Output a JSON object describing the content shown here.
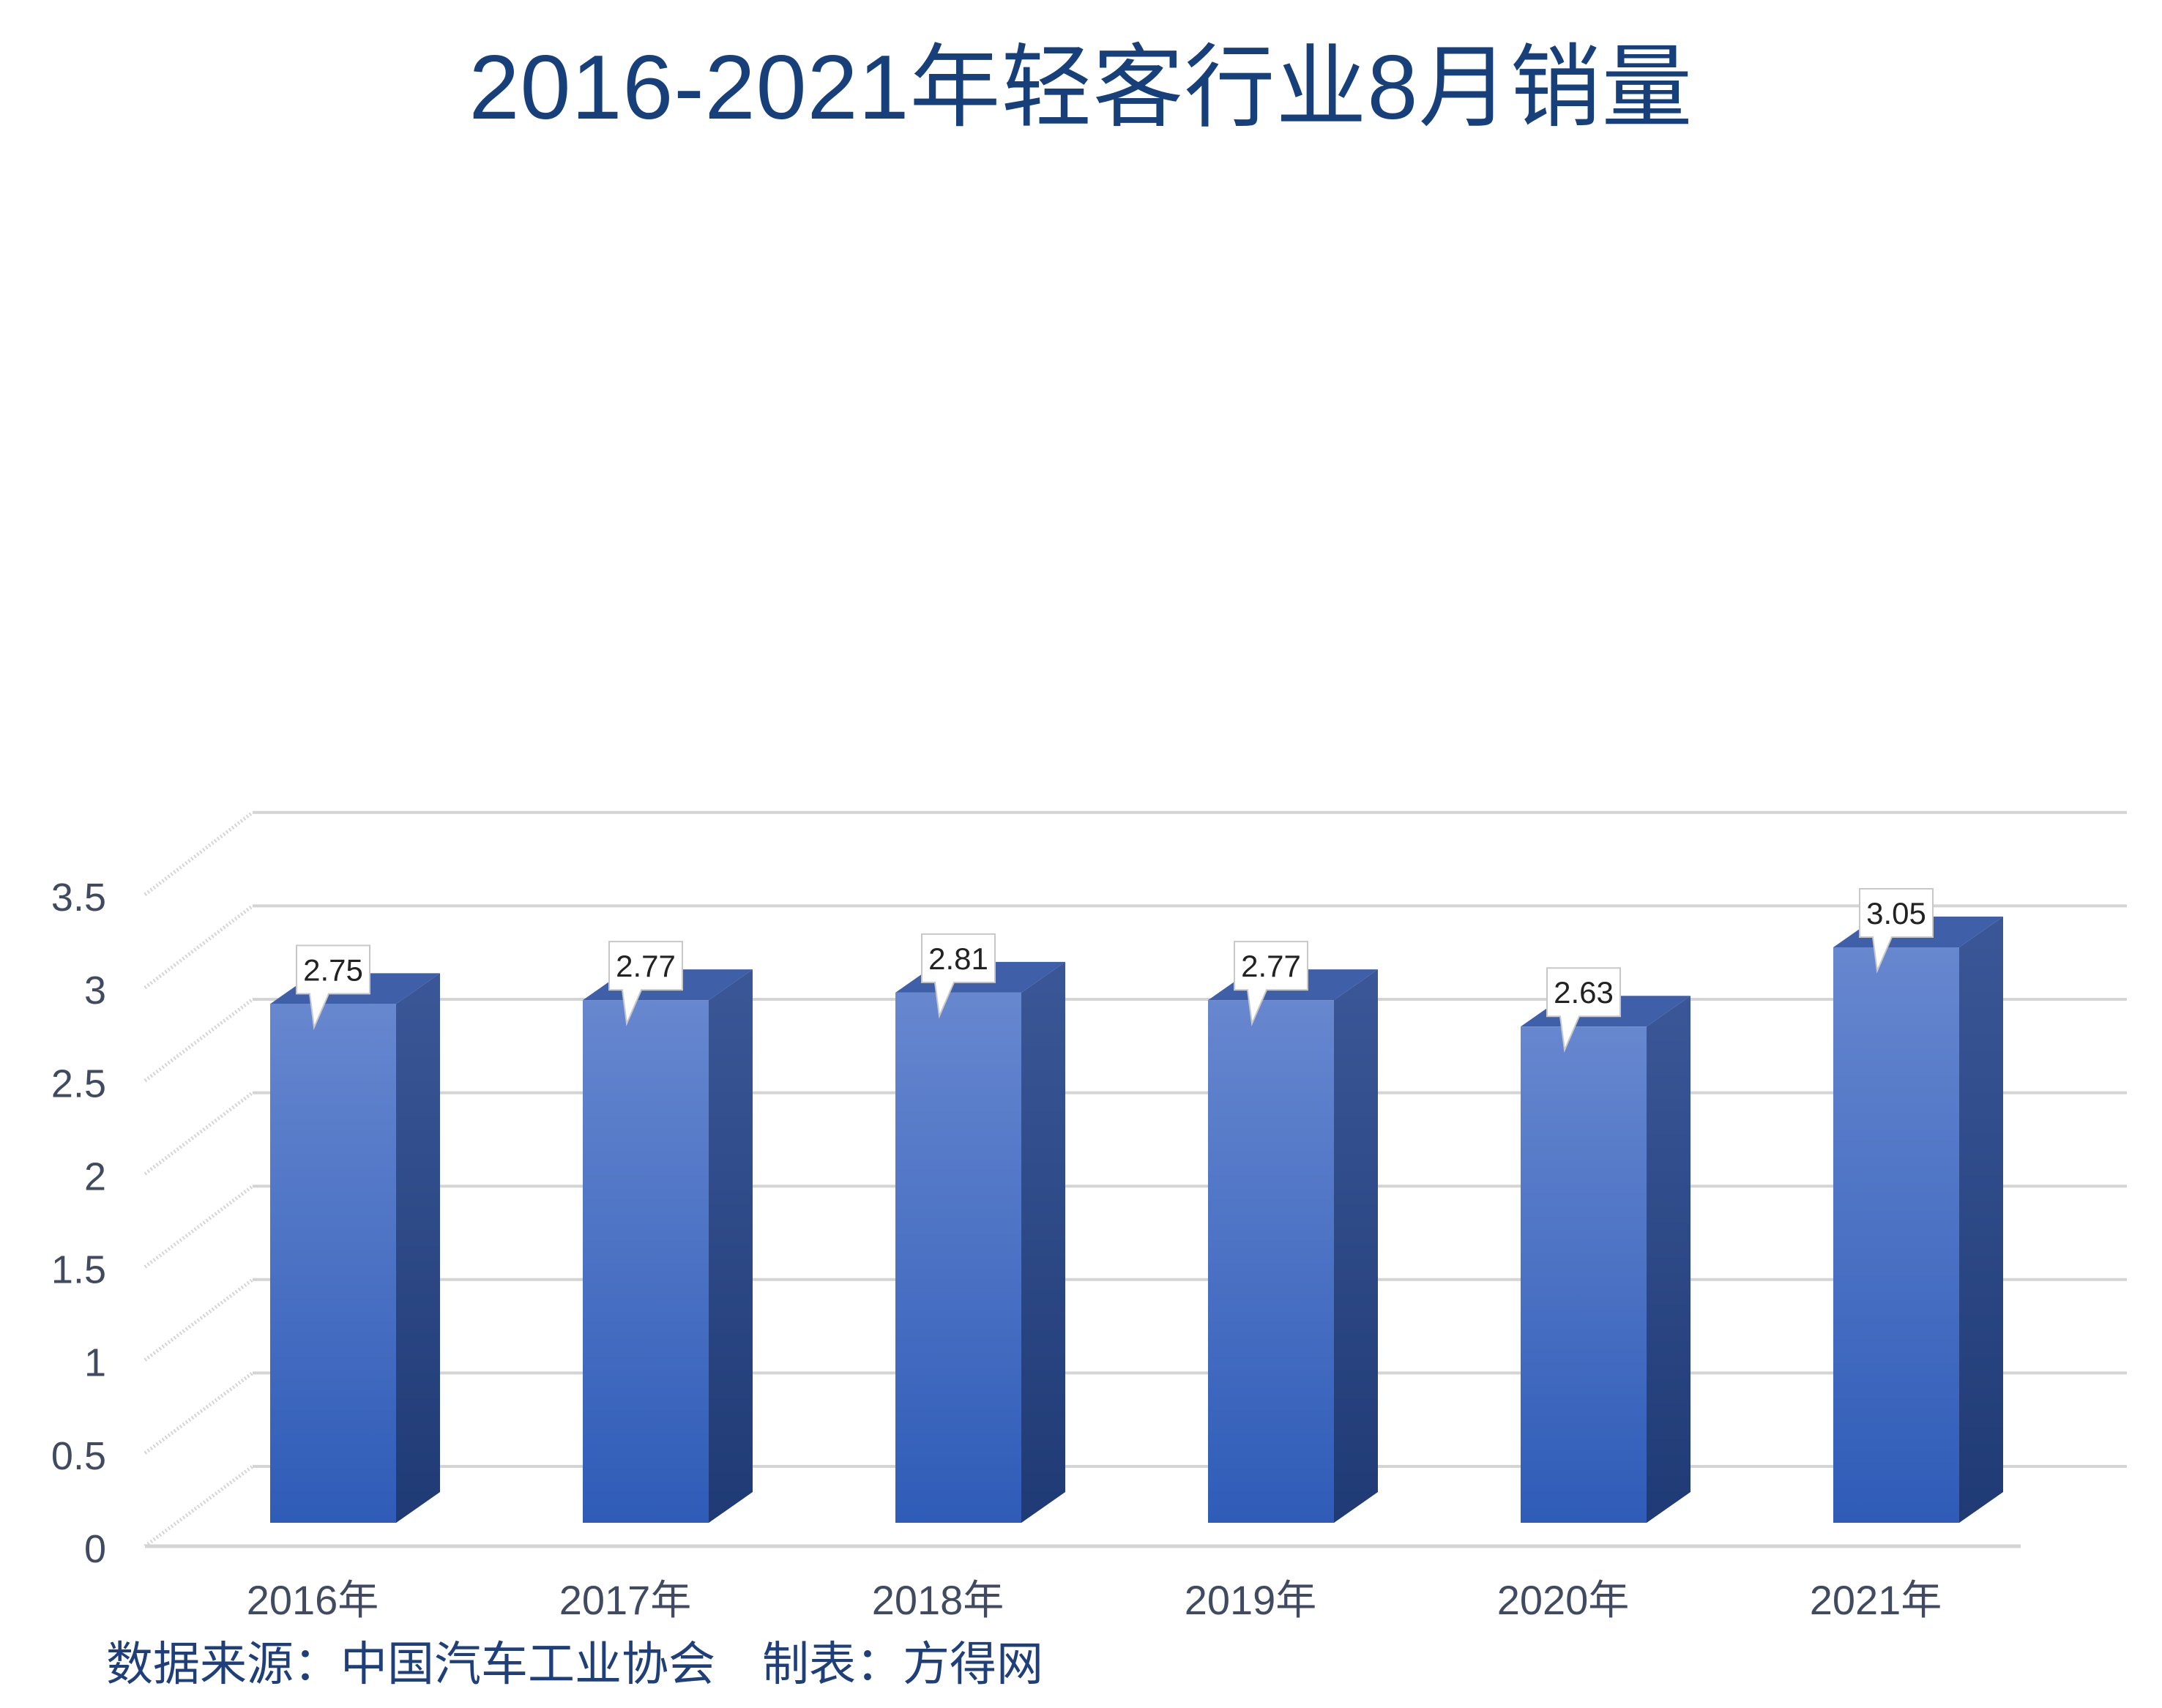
{
  "title": "2016-2021年轻客行业8月销量",
  "source_note": "数据来源：中国汽车工业协会　制表：方得网",
  "colors": {
    "title": "#17407a",
    "bar_front_top": "#6787cf",
    "bar_front_bottom": "#2f5cb8",
    "bar_side": "#2c4a8a",
    "bar_top": "#3f5fa8",
    "grid": "#d4d4d4",
    "axis_text": "#404a60",
    "footer": "#1f3f7a"
  },
  "chart_data": {
    "type": "bar",
    "categories": [
      "2016年",
      "2017年",
      "2018年",
      "2019年",
      "2020年",
      "2021年"
    ],
    "values": [
      2.75,
      2.77,
      2.81,
      2.77,
      2.63,
      3.05
    ],
    "data_labels": [
      "2.75",
      "2.77",
      "2.81",
      "2.77",
      "2.63",
      "3.05"
    ],
    "y_ticks": [
      "0",
      "0.5",
      "1",
      "1.5",
      "2",
      "2.5",
      "3",
      "3.5"
    ],
    "ylim": [
      0,
      3.5
    ],
    "grid": true,
    "legend": false,
    "style": "3d-column"
  }
}
